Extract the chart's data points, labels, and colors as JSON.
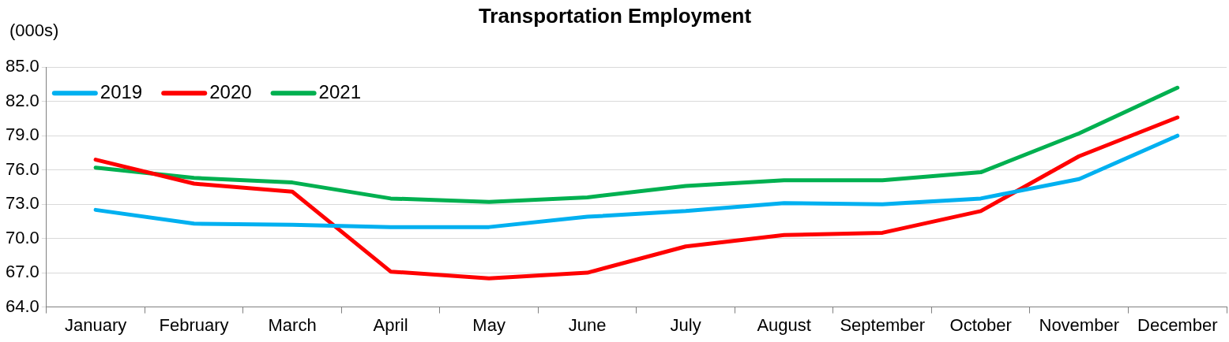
{
  "chart_data": {
    "type": "line",
    "title": "Transportation Employment",
    "ylabel": "(000s)",
    "categories": [
      "January",
      "February",
      "March",
      "April",
      "May",
      "June",
      "July",
      "August",
      "September",
      "October",
      "November",
      "December"
    ],
    "series": [
      {
        "name": "2019",
        "color": "#00b0f0",
        "values": [
          72.5,
          71.3,
          71.2,
          71.0,
          71.0,
          71.9,
          72.4,
          73.1,
          73.0,
          73.5,
          75.2,
          79.0
        ]
      },
      {
        "name": "2020",
        "color": "#ff0000",
        "values": [
          76.9,
          74.8,
          74.1,
          67.1,
          66.5,
          67.0,
          69.3,
          70.3,
          70.5,
          72.4,
          77.2,
          80.6
        ]
      },
      {
        "name": "2021",
        "color": "#00b050",
        "values": [
          76.2,
          75.3,
          74.9,
          73.5,
          73.2,
          73.6,
          74.6,
          75.1,
          75.1,
          75.8,
          79.2,
          83.2
        ]
      }
    ],
    "ylim": [
      64,
      85
    ],
    "yticks": [
      {
        "value": 64,
        "label": "64.0"
      },
      {
        "value": 67,
        "label": "67.0"
      },
      {
        "value": 70,
        "label": "70.0"
      },
      {
        "value": 73,
        "label": "73.0"
      },
      {
        "value": 76,
        "label": "76.0"
      },
      {
        "value": 79,
        "label": "79.0"
      },
      {
        "value": 82,
        "label": "82.0"
      },
      {
        "value": 85,
        "label": "85.0"
      }
    ],
    "grid": "y",
    "legend": "top left",
    "marker": "none",
    "line_style": "solid"
  }
}
